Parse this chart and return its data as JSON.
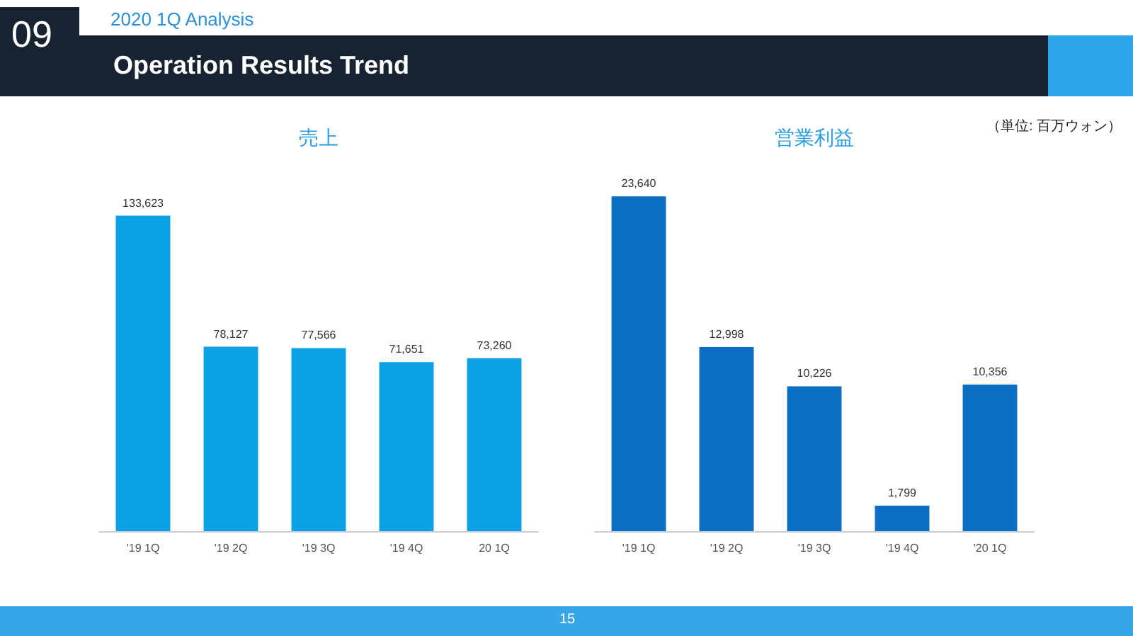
{
  "chart_data": [
    {
      "type": "bar",
      "title": "売上",
      "categories": [
        "'19 1Q",
        "'19 2Q",
        "'19 3Q",
        "'19 4Q",
        "20 1Q"
      ],
      "values": [
        133623,
        78127,
        77566,
        71651,
        73260
      ],
      "value_labels": [
        "133,623",
        "78,127",
        "77,566",
        "71,651",
        "73,260"
      ],
      "color": "#0ca0e4",
      "annotations": [
        "09",
        "2020 1Q Analysis",
        "Operation Results Trend",
        "（単位: 百万ウォン）",
        "15"
      ]
    },
    {
      "type": "bar",
      "title": "営業利益",
      "categories": [
        "'19 1Q",
        "'19 2Q",
        "'19 3Q",
        "'19 4Q",
        "'20 1Q"
      ],
      "values": [
        23640,
        12998,
        10226,
        1799,
        10356
      ],
      "value_labels": [
        "23,640",
        "12,998",
        "10,226",
        "1,799",
        "10,356"
      ],
      "color": "#0a6fc2"
    }
  ]
}
